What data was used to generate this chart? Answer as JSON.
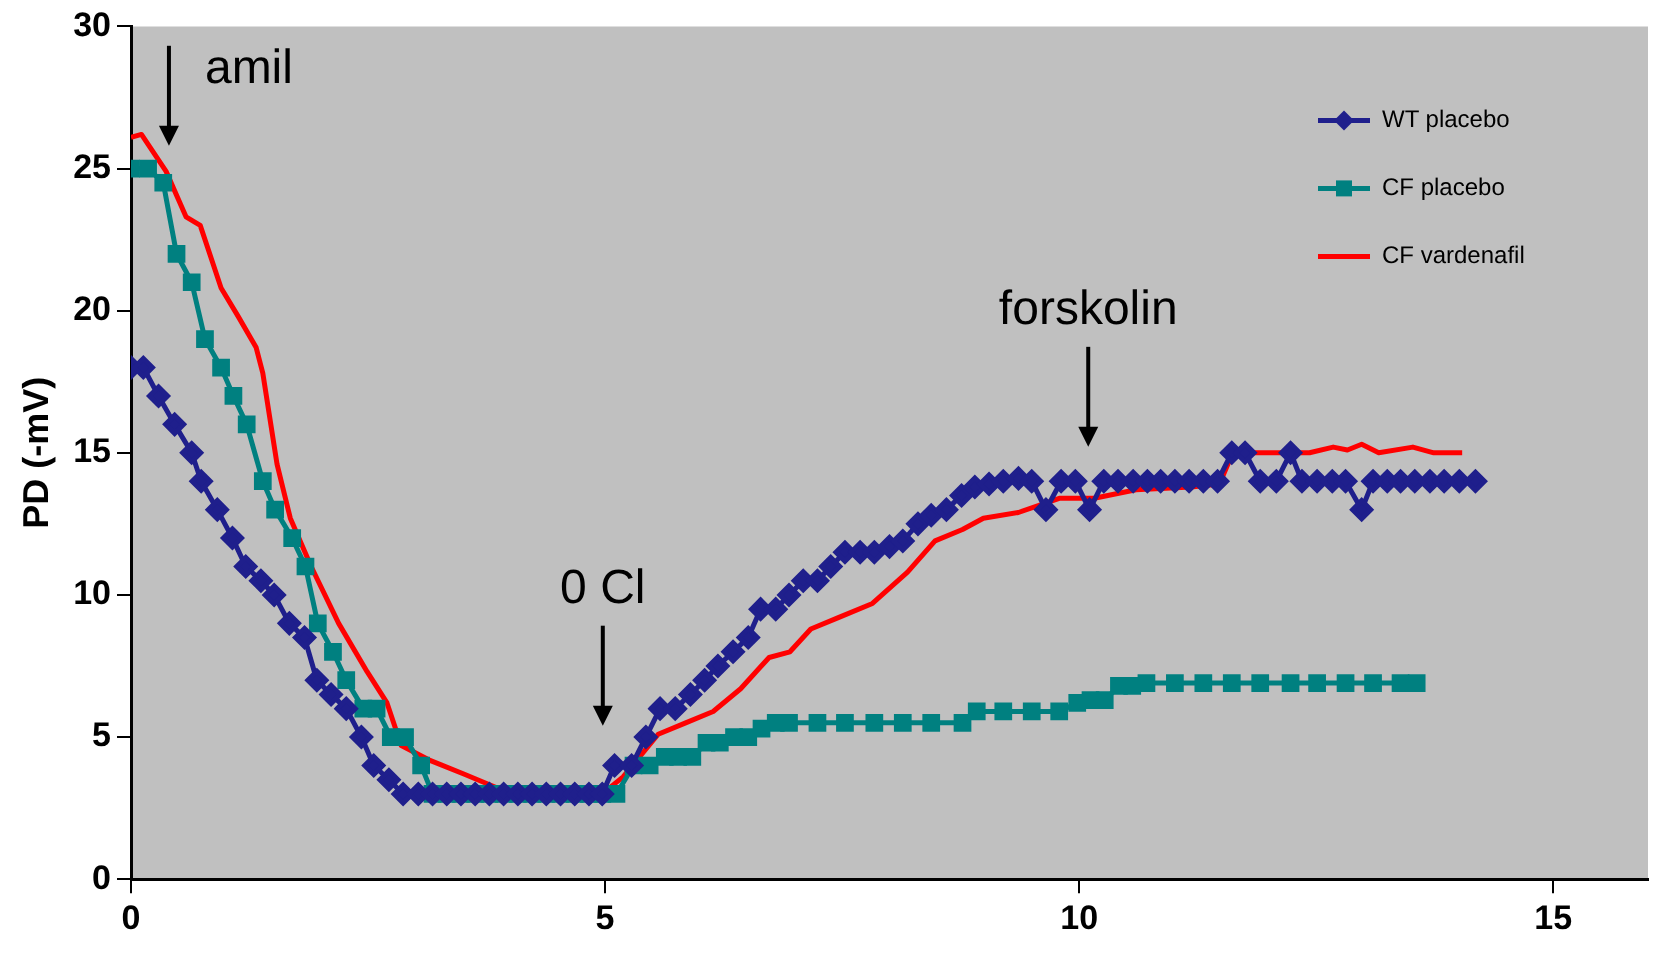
{
  "chart_data": {
    "type": "line",
    "ylabel": "PD (-mV)",
    "xlim": [
      0,
      16
    ],
    "xticks": [
      0,
      5,
      10,
      15
    ],
    "ylim": [
      0,
      30
    ],
    "yticks": [
      0,
      5,
      10,
      15,
      20,
      25,
      30
    ],
    "grid": false,
    "legend": "top right",
    "annotations": [
      "amil",
      "0 Cl",
      "forskolin"
    ],
    "series": [
      {
        "name": "WT placebo",
        "color": "#1f1f8c",
        "marker": "diamond",
        "x": [
          0,
          0.13,
          0.29,
          0.46,
          0.64,
          0.74,
          0.91,
          1.07,
          1.21,
          1.37,
          1.51,
          1.67,
          1.83,
          1.96,
          2.11,
          2.27,
          2.43,
          2.56,
          2.72,
          2.87,
          3.03,
          3.18,
          3.33,
          3.48,
          3.63,
          3.78,
          3.93,
          4.08,
          4.23,
          4.38,
          4.53,
          4.68,
          4.83,
          4.97,
          5.1,
          5.28,
          5.43,
          5.58,
          5.74,
          5.9,
          6.05,
          6.19,
          6.35,
          6.51,
          6.64,
          6.8,
          6.94,
          7.09,
          7.24,
          7.38,
          7.53,
          7.69,
          7.84,
          8.0,
          8.14,
          8.3,
          8.44,
          8.6,
          8.76,
          8.9,
          9.05,
          9.2,
          9.36,
          9.5,
          9.65,
          9.81,
          9.96,
          10.11,
          10.26,
          10.41,
          10.57,
          10.72,
          10.86,
          11.01,
          11.16,
          11.31,
          11.46,
          11.61,
          11.75,
          11.91,
          12.08,
          12.23,
          12.35,
          12.51,
          12.67,
          12.81,
          12.98,
          13.1,
          13.25,
          13.39,
          13.54,
          13.7,
          13.85,
          14.01,
          14.18
        ],
        "values": [
          18,
          18,
          17,
          16,
          15,
          14,
          13,
          12,
          11,
          10.5,
          10,
          9,
          8.5,
          7,
          6.5,
          6,
          5,
          4,
          3.5,
          3,
          3,
          3,
          3,
          3,
          3,
          3,
          3,
          3,
          3,
          3,
          3,
          3,
          3,
          3,
          4,
          4,
          5,
          6,
          6,
          6.5,
          7,
          7.5,
          8,
          8.5,
          9.5,
          9.5,
          10,
          10.5,
          10.5,
          11,
          11.5,
          11.5,
          11.5,
          11.7,
          11.9,
          12.5,
          12.8,
          13,
          13.5,
          13.8,
          13.9,
          14,
          14.1,
          14,
          13,
          14,
          14,
          13,
          14,
          14,
          14,
          14,
          14,
          14,
          14,
          14,
          14,
          15,
          15,
          14,
          14,
          15,
          14,
          14,
          14,
          14,
          13,
          14,
          14,
          14,
          14,
          14,
          14,
          14,
          14
        ]
      },
      {
        "name": "CF placebo",
        "color": "#008080",
        "marker": "square",
        "x": [
          0,
          0.18,
          0.34,
          0.48,
          0.64,
          0.78,
          0.95,
          1.08,
          1.22,
          1.39,
          1.52,
          1.7,
          1.84,
          1.97,
          2.13,
          2.27,
          2.45,
          2.59,
          2.74,
          2.89,
          3.06,
          3.18,
          3.33,
          3.48,
          3.63,
          3.78,
          3.93,
          4.08,
          4.23,
          4.38,
          4.53,
          4.68,
          4.83,
          4.97,
          5.12,
          5.3,
          5.47,
          5.63,
          5.77,
          5.92,
          6.07,
          6.21,
          6.36,
          6.51,
          6.65,
          6.8,
          6.94,
          7.24,
          7.53,
          7.84,
          8.14,
          8.44,
          8.77,
          8.92,
          9.2,
          9.5,
          9.79,
          9.98,
          10.12,
          10.27,
          10.42,
          10.56,
          10.71,
          11.01,
          11.31,
          11.61,
          11.91,
          12.23,
          12.51,
          12.81,
          13.1,
          13.39,
          13.56
        ],
        "values": [
          25,
          25,
          24.5,
          22,
          21,
          19,
          18,
          17,
          16,
          14,
          13,
          12,
          11,
          9,
          8,
          7,
          6,
          6,
          5,
          5,
          4,
          3,
          3,
          3,
          3,
          3,
          3,
          3,
          3,
          3,
          3,
          3,
          3,
          3,
          3,
          4,
          4,
          4.3,
          4.3,
          4.3,
          4.8,
          4.8,
          5,
          5,
          5.3,
          5.5,
          5.5,
          5.5,
          5.5,
          5.5,
          5.5,
          5.5,
          5.5,
          5.9,
          5.9,
          5.9,
          5.9,
          6.2,
          6.3,
          6.3,
          6.8,
          6.8,
          6.9,
          6.9,
          6.9,
          6.9,
          6.9,
          6.9,
          6.9,
          6.9,
          6.9,
          6.9,
          6.9
        ]
      },
      {
        "name": "CF vardenafil",
        "color": "#ff0000",
        "marker": "none",
        "x": [
          0,
          0.11,
          0.37,
          0.58,
          0.73,
          0.95,
          1.13,
          1.32,
          1.39,
          1.54,
          1.68,
          1.9,
          2.19,
          2.49,
          2.7,
          2.85,
          3.14,
          3.51,
          3.87,
          4.17,
          4.97,
          5.19,
          5.56,
          5.85,
          6.14,
          6.43,
          6.73,
          6.95,
          7.17,
          7.46,
          7.82,
          8.19,
          8.48,
          8.77,
          8.99,
          9.36,
          9.79,
          10.16,
          10.6,
          11.18,
          11.48,
          11.62,
          12.43,
          12.68,
          12.83,
          12.98,
          13.16,
          13.52,
          13.74,
          14.04
        ],
        "values": [
          26.1,
          26.2,
          24.9,
          23.3,
          23,
          20.8,
          19.8,
          18.7,
          17.8,
          14.6,
          12.7,
          11,
          9,
          7.3,
          6.2,
          4.7,
          4.2,
          3.7,
          3.2,
          3,
          3,
          3.6,
          5.1,
          5.5,
          5.9,
          6.7,
          7.8,
          8,
          8.8,
          9.2,
          9.7,
          10.8,
          11.9,
          12.3,
          12.7,
          12.9,
          13.4,
          13.4,
          13.7,
          13.8,
          13.9,
          15,
          15,
          15.2,
          15.1,
          15.3,
          15,
          15.2,
          15,
          15
        ]
      }
    ]
  }
}
